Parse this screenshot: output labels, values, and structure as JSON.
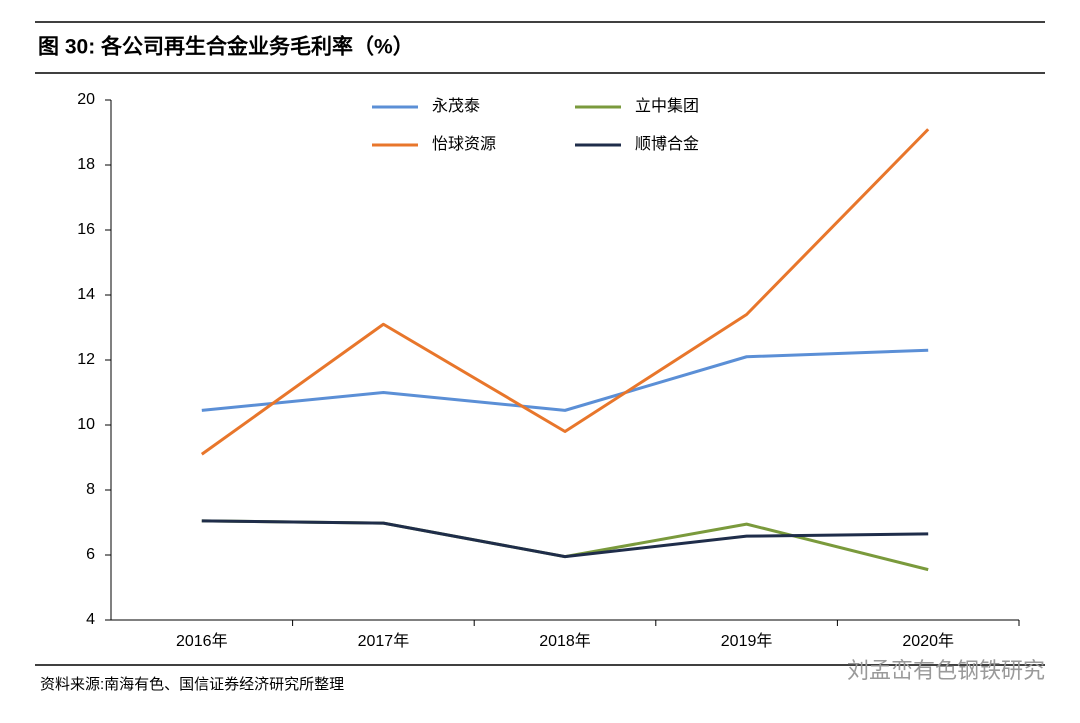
{
  "chart_data": {
    "type": "line",
    "title": "图 30:  各公司再生合金业务毛利率（%）",
    "source": "资料来源:南海有色、国信证券经济研究所整理",
    "watermark": "刘孟峦有色钢铁研究",
    "categories": [
      "2016年",
      "2017年",
      "2018年",
      "2019年",
      "2020年"
    ],
    "series": [
      {
        "name": "永茂泰",
        "color": "#5b8fd6",
        "values": [
          10.45,
          11.0,
          10.45,
          12.1,
          12.3
        ]
      },
      {
        "name": "立中集团",
        "color": "#7a9a3c",
        "values": [
          7.05,
          6.98,
          5.95,
          6.95,
          5.55
        ]
      },
      {
        "name": "怡球资源",
        "color": "#e8762b",
        "values": [
          9.1,
          13.1,
          9.8,
          13.4,
          19.1
        ]
      },
      {
        "name": "顺博合金",
        "color": "#1f2d4a",
        "values": [
          7.05,
          6.98,
          5.95,
          6.58,
          6.65
        ]
      }
    ],
    "ylim": [
      4,
      20
    ],
    "yticks": [
      4,
      6,
      8,
      10,
      12,
      14,
      16,
      18,
      20
    ],
    "grid": false
  }
}
